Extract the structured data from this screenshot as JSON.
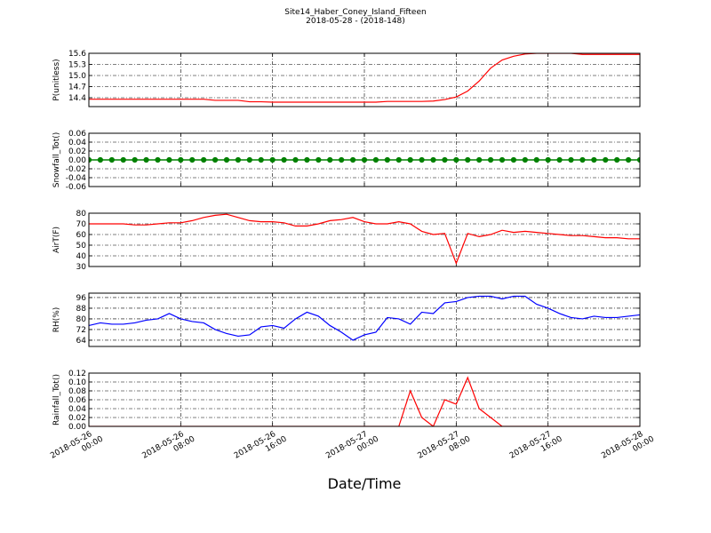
{
  "title": "Site14_Haber_Coney_Island_Fifteen",
  "subtitle": "2018-05-28 - (2018-148)",
  "xlabel": "Date/Time",
  "chart_data": [
    {
      "type": "line",
      "ylabel": "P(unitless)",
      "color": "#ff0000",
      "grid": true,
      "xlim": [
        "2018-05-26 00:00",
        "2018-05-28 00:00"
      ],
      "xticks": [
        "2018-05-26 00:00",
        "2018-05-26 08:00",
        "2018-05-26 16:00",
        "2018-05-27 00:00",
        "2018-05-27 08:00",
        "2018-05-27 16:00",
        "2018-05-28 00:00"
      ],
      "ylim": [
        14.16,
        15.6
      ],
      "yticks": [
        14.4,
        14.7,
        {
          "value": 15,
          "label": "15.0"
        },
        15.3,
        15.6
      ],
      "x": [
        "2018-05-26 00:00",
        "2018-05-26 01:00",
        "2018-05-26 02:00",
        "2018-05-26 03:00",
        "2018-05-26 04:00",
        "2018-05-26 05:00",
        "2018-05-26 06:00",
        "2018-05-26 07:00",
        "2018-05-26 08:00",
        "2018-05-26 09:00",
        "2018-05-26 10:00",
        "2018-05-26 11:00",
        "2018-05-26 12:00",
        "2018-05-26 13:00",
        "2018-05-26 14:00",
        "2018-05-26 15:00",
        "2018-05-26 16:00",
        "2018-05-26 17:00",
        "2018-05-26 18:00",
        "2018-05-26 19:00",
        "2018-05-26 20:00",
        "2018-05-26 21:00",
        "2018-05-26 22:00",
        "2018-05-26 23:00",
        "2018-05-27 00:00",
        "2018-05-27 01:00",
        "2018-05-27 02:00",
        "2018-05-27 03:00",
        "2018-05-27 04:00",
        "2018-05-27 05:00",
        "2018-05-27 06:00",
        "2018-05-27 07:00",
        "2018-05-27 08:00",
        "2018-05-27 09:00",
        "2018-05-27 10:00",
        "2018-05-27 11:00",
        "2018-05-27 12:00",
        "2018-05-27 13:00",
        "2018-05-27 14:00",
        "2018-05-27 15:00",
        "2018-05-27 16:00",
        "2018-05-27 17:00",
        "2018-05-27 18:00",
        "2018-05-27 19:00",
        "2018-05-27 20:00",
        "2018-05-27 21:00",
        "2018-05-27 22:00",
        "2018-05-27 23:00",
        "2018-05-28 00:00"
      ],
      "values": [
        14.36,
        14.36,
        14.36,
        14.36,
        14.36,
        14.36,
        14.36,
        14.36,
        14.36,
        14.36,
        14.36,
        14.33,
        14.33,
        14.33,
        14.29,
        14.29,
        14.28,
        14.28,
        14.28,
        14.28,
        14.28,
        14.28,
        14.28,
        14.28,
        14.28,
        14.28,
        14.3,
        14.3,
        14.3,
        14.3,
        14.31,
        14.35,
        14.42,
        14.58,
        14.85,
        15.2,
        15.42,
        15.52,
        15.58,
        15.6,
        15.6,
        15.6,
        15.6,
        15.57,
        15.57,
        15.57,
        15.57,
        15.57,
        15.57
      ]
    },
    {
      "type": "line",
      "ylabel": "Snowfall_Tot()",
      "color": "#008000",
      "marker": "o",
      "grid": true,
      "xlim": [
        "2018-05-26 00:00",
        "2018-05-28 00:00"
      ],
      "xticks": [
        "2018-05-26 00:00",
        "2018-05-26 08:00",
        "2018-05-26 16:00",
        "2018-05-27 00:00",
        "2018-05-27 08:00",
        "2018-05-27 16:00",
        "2018-05-28 00:00"
      ],
      "ylim": [
        -0.06,
        0.06
      ],
      "yticks": [
        -0.06,
        -0.04,
        -0.02,
        {
          "value": 0,
          "label": "0.00"
        },
        0.02,
        0.04,
        0.06
      ],
      "x": [
        "2018-05-26 00:00",
        "2018-05-26 01:00",
        "2018-05-26 02:00",
        "2018-05-26 03:00",
        "2018-05-26 04:00",
        "2018-05-26 05:00",
        "2018-05-26 06:00",
        "2018-05-26 07:00",
        "2018-05-26 08:00",
        "2018-05-26 09:00",
        "2018-05-26 10:00",
        "2018-05-26 11:00",
        "2018-05-26 12:00",
        "2018-05-26 13:00",
        "2018-05-26 14:00",
        "2018-05-26 15:00",
        "2018-05-26 16:00",
        "2018-05-26 17:00",
        "2018-05-26 18:00",
        "2018-05-26 19:00",
        "2018-05-26 20:00",
        "2018-05-26 21:00",
        "2018-05-26 22:00",
        "2018-05-26 23:00",
        "2018-05-27 00:00",
        "2018-05-27 01:00",
        "2018-05-27 02:00",
        "2018-05-27 03:00",
        "2018-05-27 04:00",
        "2018-05-27 05:00",
        "2018-05-27 06:00",
        "2018-05-27 07:00",
        "2018-05-27 08:00",
        "2018-05-27 09:00",
        "2018-05-27 10:00",
        "2018-05-27 11:00",
        "2018-05-27 12:00",
        "2018-05-27 13:00",
        "2018-05-27 14:00",
        "2018-05-27 15:00",
        "2018-05-27 16:00",
        "2018-05-27 17:00",
        "2018-05-27 18:00",
        "2018-05-27 19:00",
        "2018-05-27 20:00",
        "2018-05-27 21:00",
        "2018-05-27 22:00",
        "2018-05-27 23:00",
        "2018-05-28 00:00"
      ],
      "values": [
        0,
        0,
        0,
        0,
        0,
        0,
        0,
        0,
        0,
        0,
        0,
        0,
        0,
        0,
        0,
        0,
        0,
        0,
        0,
        0,
        0,
        0,
        0,
        0,
        0,
        0,
        0,
        0,
        0,
        0,
        0,
        0,
        0,
        0,
        0,
        0,
        0,
        0,
        0,
        0,
        0,
        0,
        0,
        0,
        0,
        0,
        0,
        0,
        0
      ]
    },
    {
      "type": "line",
      "ylabel": "AirT(F)",
      "color": "#ff0000",
      "grid": true,
      "xlim": [
        "2018-05-26 00:00",
        "2018-05-28 00:00"
      ],
      "xticks": [
        "2018-05-26 00:00",
        "2018-05-26 08:00",
        "2018-05-26 16:00",
        "2018-05-27 00:00",
        "2018-05-27 08:00",
        "2018-05-27 16:00",
        "2018-05-28 00:00"
      ],
      "ylim": [
        30,
        80
      ],
      "yticks": [
        30,
        40,
        50,
        60,
        70,
        80
      ],
      "x": [
        "2018-05-26 00:00",
        "2018-05-26 01:00",
        "2018-05-26 02:00",
        "2018-05-26 03:00",
        "2018-05-26 04:00",
        "2018-05-26 05:00",
        "2018-05-26 06:00",
        "2018-05-26 07:00",
        "2018-05-26 08:00",
        "2018-05-26 09:00",
        "2018-05-26 10:00",
        "2018-05-26 11:00",
        "2018-05-26 12:00",
        "2018-05-26 13:00",
        "2018-05-26 14:00",
        "2018-05-26 15:00",
        "2018-05-26 16:00",
        "2018-05-26 17:00",
        "2018-05-26 18:00",
        "2018-05-26 19:00",
        "2018-05-26 20:00",
        "2018-05-26 21:00",
        "2018-05-26 22:00",
        "2018-05-26 23:00",
        "2018-05-27 00:00",
        "2018-05-27 01:00",
        "2018-05-27 02:00",
        "2018-05-27 03:00",
        "2018-05-27 04:00",
        "2018-05-27 05:00",
        "2018-05-27 06:00",
        "2018-05-27 07:00",
        "2018-05-27 08:00",
        "2018-05-27 09:00",
        "2018-05-27 10:00",
        "2018-05-27 11:00",
        "2018-05-27 12:00",
        "2018-05-27 13:00",
        "2018-05-27 14:00",
        "2018-05-27 15:00",
        "2018-05-27 16:00",
        "2018-05-27 17:00",
        "2018-05-27 18:00",
        "2018-05-27 19:00",
        "2018-05-27 20:00",
        "2018-05-27 21:00",
        "2018-05-27 22:00",
        "2018-05-27 23:00",
        "2018-05-28 00:00"
      ],
      "values": [
        70,
        70,
        70,
        70,
        69,
        69,
        70,
        71,
        71,
        73,
        76,
        78,
        79,
        76,
        73,
        72,
        72,
        71,
        68,
        68,
        70,
        73,
        74,
        76,
        72,
        70,
        70,
        72,
        70,
        63,
        60,
        61,
        33,
        61,
        58,
        60,
        64,
        62,
        63,
        62,
        61,
        60,
        59,
        59,
        58,
        57,
        57,
        56,
        56
      ]
    },
    {
      "type": "line",
      "ylabel": "RH(%)",
      "color": "#0000ff",
      "grid": true,
      "xlim": [
        "2018-05-26 00:00",
        "2018-05-28 00:00"
      ],
      "xticks": [
        "2018-05-26 00:00",
        "2018-05-26 08:00",
        "2018-05-26 16:00",
        "2018-05-27 00:00",
        "2018-05-27 08:00",
        "2018-05-27 16:00",
        "2018-05-28 00:00"
      ],
      "ylim": [
        59.3,
        99.3
      ],
      "yticks": [
        64,
        72,
        80,
        88,
        96
      ],
      "x": [
        "2018-05-26 00:00",
        "2018-05-26 01:00",
        "2018-05-26 02:00",
        "2018-05-26 03:00",
        "2018-05-26 04:00",
        "2018-05-26 05:00",
        "2018-05-26 06:00",
        "2018-05-26 07:00",
        "2018-05-26 08:00",
        "2018-05-26 09:00",
        "2018-05-26 10:00",
        "2018-05-26 11:00",
        "2018-05-26 12:00",
        "2018-05-26 13:00",
        "2018-05-26 14:00",
        "2018-05-26 15:00",
        "2018-05-26 16:00",
        "2018-05-26 17:00",
        "2018-05-26 18:00",
        "2018-05-26 19:00",
        "2018-05-26 20:00",
        "2018-05-26 21:00",
        "2018-05-26 22:00",
        "2018-05-26 23:00",
        "2018-05-27 00:00",
        "2018-05-27 01:00",
        "2018-05-27 02:00",
        "2018-05-27 03:00",
        "2018-05-27 04:00",
        "2018-05-27 05:00",
        "2018-05-27 06:00",
        "2018-05-27 07:00",
        "2018-05-27 08:00",
        "2018-05-27 09:00",
        "2018-05-27 10:00",
        "2018-05-27 11:00",
        "2018-05-27 12:00",
        "2018-05-27 13:00",
        "2018-05-27 14:00",
        "2018-05-27 15:00",
        "2018-05-27 16:00",
        "2018-05-27 17:00",
        "2018-05-27 18:00",
        "2018-05-27 19:00",
        "2018-05-27 20:00",
        "2018-05-27 21:00",
        "2018-05-27 22:00",
        "2018-05-27 23:00",
        "2018-05-28 00:00"
      ],
      "values": [
        75,
        77,
        76,
        76,
        77,
        79,
        80,
        84,
        80,
        78,
        77,
        72,
        69,
        67,
        68,
        74,
        75,
        73,
        80,
        85,
        82,
        75,
        70,
        64,
        68,
        70,
        81,
        80,
        76,
        85,
        84,
        92,
        93,
        96,
        97,
        97,
        95,
        97,
        97,
        91,
        88,
        84,
        81,
        80,
        82,
        81,
        81,
        82,
        83
      ]
    },
    {
      "type": "line",
      "ylabel": "Rainfall_Tot()",
      "color": "#ff0000",
      "grid": true,
      "xlim": [
        "2018-05-26 00:00",
        "2018-05-28 00:00"
      ],
      "xticks": [
        "2018-05-26 00:00",
        "2018-05-26 08:00",
        "2018-05-26 16:00",
        "2018-05-27 00:00",
        "2018-05-27 08:00",
        "2018-05-27 16:00",
        "2018-05-28 00:00"
      ],
      "ylim": [
        0,
        0.12
      ],
      "yticks": [
        {
          "value": 0,
          "label": "0.00"
        },
        0.02,
        0.04,
        0.06,
        0.08,
        {
          "value": 0.1,
          "label": "0.10"
        },
        0.12
      ],
      "x": [
        "2018-05-26 00:00",
        "2018-05-26 01:00",
        "2018-05-26 02:00",
        "2018-05-26 03:00",
        "2018-05-26 04:00",
        "2018-05-26 05:00",
        "2018-05-26 06:00",
        "2018-05-26 07:00",
        "2018-05-26 08:00",
        "2018-05-26 09:00",
        "2018-05-26 10:00",
        "2018-05-26 11:00",
        "2018-05-26 12:00",
        "2018-05-26 13:00",
        "2018-05-26 14:00",
        "2018-05-26 15:00",
        "2018-05-26 16:00",
        "2018-05-26 17:00",
        "2018-05-26 18:00",
        "2018-05-26 19:00",
        "2018-05-26 20:00",
        "2018-05-26 21:00",
        "2018-05-26 22:00",
        "2018-05-26 23:00",
        "2018-05-27 00:00",
        "2018-05-27 01:00",
        "2018-05-27 02:00",
        "2018-05-27 03:00",
        "2018-05-27 04:00",
        "2018-05-27 05:00",
        "2018-05-27 06:00",
        "2018-05-27 07:00",
        "2018-05-27 08:00",
        "2018-05-27 09:00",
        "2018-05-27 10:00",
        "2018-05-27 11:00",
        "2018-05-27 12:00",
        "2018-05-27 13:00",
        "2018-05-27 14:00",
        "2018-05-27 15:00",
        "2018-05-27 16:00",
        "2018-05-27 17:00",
        "2018-05-27 18:00",
        "2018-05-27 19:00",
        "2018-05-27 20:00",
        "2018-05-27 21:00",
        "2018-05-27 22:00",
        "2018-05-27 23:00",
        "2018-05-28 00:00"
      ],
      "values": [
        0,
        0,
        0,
        0,
        0,
        0,
        0,
        0,
        0,
        0,
        0,
        0,
        0,
        0,
        0,
        0,
        0,
        0,
        0,
        0,
        0,
        0,
        0,
        0,
        0,
        0,
        0,
        0,
        0.08,
        0.02,
        0,
        0.06,
        0.05,
        0.11,
        0.04,
        0.02,
        0,
        0,
        0,
        0,
        0,
        0,
        0,
        0,
        0,
        0,
        0,
        0,
        0
      ]
    }
  ]
}
